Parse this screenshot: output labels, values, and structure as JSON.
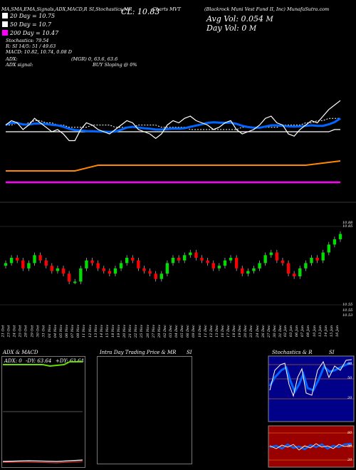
{
  "header": {
    "title_left": "MA,SMA,EMA,Signals,ADX,MACD,R",
    "title_mid": "SI,Stochastics,MR",
    "cl_label": "CL: 10.83",
    "ticker": "Charts MVT",
    "company": "(Blackrock Muni Vest Fund II, Inc) MunafaSutra.com",
    "avg_vol": "Avg Vol: 0.054",
    "avg_vol_unit": "M",
    "day_vol": "Day Vol: 0",
    "day_vol_unit": "M"
  },
  "legend": [
    {
      "label": "20  Day  = 10.75",
      "color": "#ffffff"
    },
    {
      "label": "50  Day  = 10.7",
      "color": "#ffffff"
    },
    {
      "label": "200  Day  = 10.47",
      "color": "#ff00ff"
    }
  ],
  "stats": [
    "Stochastics: 79.54",
    "R:                SI 14/5: 51 / 49.63",
    "MACD: 10.82, 10.74, 0.08  D"
  ],
  "adx_line": {
    "label": "ADX:",
    "value": "(MGR) 0, 63.6, 63.6"
  },
  "adx_signal": {
    "label": "ADX  signal:",
    "value": "BUY Sloping @ 0%"
  },
  "price_axis": {
    "top": [
      "10.88",
      "10.85"
    ],
    "bottom": [
      "10.55",
      "10.55",
      "10.53"
    ]
  },
  "dates": [
    "21 Oct",
    "23 Oct",
    "24 Oct",
    "25 Oct",
    "28 Oct",
    "29 Oct",
    "30 Oct",
    "31 Oct",
    "01 Nov",
    "04 Nov",
    "05 Nov",
    "06 Nov",
    "07 Nov",
    "08 Nov",
    "11 Nov",
    "12 Nov",
    "13 Nov",
    "14 Nov",
    "15 Nov",
    "18 Nov",
    "19 Nov",
    "20 Nov",
    "21 Nov",
    "22 Nov",
    "25 Nov",
    "26 Nov",
    "27 Nov",
    "29 Nov",
    "02 Dec",
    "03 Dec",
    "04 Dec",
    "05 Dec",
    "06 Dec",
    "09 Dec",
    "10 Dec",
    "11 Dec",
    "12 Dec",
    "13 Dec",
    "16 Dec",
    "17 Dec",
    "18 Dec",
    "19 Dec",
    "20 Dec",
    "23 Dec",
    "24 Dec",
    "26 Dec",
    "27 Dec",
    "30 Dec",
    "31 Dec",
    "02 Jan",
    "03 Jan",
    "06 Jan",
    "07 Jan",
    "08 Jan",
    "10 Jan",
    "13 Jan",
    "14 Jan",
    "15 Jan",
    "16 Jan"
  ],
  "panels": {
    "adx": {
      "title": "ADX  & MACD",
      "adx_label": "ADX: 0",
      "dy_neg": "-DY: 63.64",
      "dy_pos": "+DY: 63.64"
    },
    "intraday": {
      "title": "Intra  Day Trading Price  & MR",
      "si": "SI"
    },
    "stoch": {
      "title": "Stochastics & R",
      "si": "SI",
      "ticks": [
        "80",
        "50",
        "20"
      ],
      "r_ticks": [
        "80",
        "50",
        "20"
      ]
    }
  },
  "colors": {
    "up": "#00dd00",
    "down": "#ff0000",
    "ema": "#0066ff",
    "ma200": "#ff00ff",
    "orange": "#ff8800",
    "stoch_bg": "#000088",
    "rsi_bg": "#990000"
  },
  "chart_data": {
    "type": "line",
    "x": [
      "21 Oct",
      "23 Oct",
      "24 Oct",
      "25 Oct",
      "28 Oct",
      "29 Oct",
      "30 Oct",
      "31 Oct",
      "01 Nov",
      "04 Nov",
      "05 Nov",
      "06 Nov",
      "07 Nov",
      "08 Nov",
      "11 Nov",
      "12 Nov",
      "13 Nov",
      "14 Nov",
      "15 Nov",
      "18 Nov",
      "19 Nov",
      "20 Nov",
      "21 Nov",
      "22 Nov",
      "25 Nov",
      "26 Nov",
      "27 Nov",
      "29 Nov",
      "02 Dec",
      "03 Dec",
      "04 Dec",
      "05 Dec",
      "06 Dec",
      "09 Dec",
      "10 Dec",
      "11 Dec",
      "12 Dec",
      "13 Dec",
      "16 Dec",
      "17 Dec",
      "18 Dec",
      "19 Dec",
      "20 Dec",
      "23 Dec",
      "24 Dec",
      "26 Dec",
      "27 Dec",
      "30 Dec",
      "31 Dec",
      "02 Jan",
      "03 Jan",
      "06 Jan",
      "07 Jan",
      "08 Jan",
      "10 Jan",
      "13 Jan",
      "14 Jan",
      "15 Jan",
      "16 Jan"
    ],
    "series": [
      {
        "name": "20 Day",
        "values": [
          10.72,
          10.72,
          10.73,
          10.72,
          10.73,
          10.74,
          10.74,
          10.73,
          10.73,
          10.72,
          10.72,
          10.71,
          10.71,
          10.71,
          10.71,
          10.72,
          10.72,
          10.72,
          10.72,
          10.71,
          10.71,
          10.71,
          10.71,
          10.72,
          10.72,
          10.72,
          10.72,
          10.71,
          10.71,
          10.71,
          10.71,
          10.71,
          10.7,
          10.7,
          10.7,
          10.7,
          10.7,
          10.7,
          10.7,
          10.7,
          10.7,
          10.71,
          10.71,
          10.71,
          10.71,
          10.71,
          10.71,
          10.71,
          10.72,
          10.72,
          10.72,
          10.72,
          10.73,
          10.73,
          10.74,
          10.74,
          10.75,
          10.75,
          10.75
        ]
      },
      {
        "name": "50 Day",
        "values": [
          10.69,
          10.69,
          10.69,
          10.69,
          10.69,
          10.69,
          10.69,
          10.69,
          10.69,
          10.69,
          10.69,
          10.69,
          10.69,
          10.69,
          10.69,
          10.69,
          10.69,
          10.69,
          10.69,
          10.69,
          10.69,
          10.69,
          10.69,
          10.69,
          10.69,
          10.69,
          10.69,
          10.69,
          10.69,
          10.69,
          10.69,
          10.69,
          10.69,
          10.69,
          10.69,
          10.69,
          10.69,
          10.69,
          10.69,
          10.69,
          10.69,
          10.69,
          10.69,
          10.69,
          10.69,
          10.69,
          10.69,
          10.69,
          10.69,
          10.69,
          10.69,
          10.69,
          10.69,
          10.69,
          10.69,
          10.69,
          10.69,
          10.7,
          10.7
        ]
      },
      {
        "name": "200 Day",
        "values": [
          10.47,
          10.47,
          10.47,
          10.47,
          10.47,
          10.47,
          10.47,
          10.47,
          10.47,
          10.47,
          10.47,
          10.47,
          10.47,
          10.47,
          10.47,
          10.47,
          10.47,
          10.47,
          10.47,
          10.47,
          10.47,
          10.47,
          10.47,
          10.47,
          10.47,
          10.47,
          10.47,
          10.47,
          10.47,
          10.47,
          10.47,
          10.47,
          10.47,
          10.47,
          10.47,
          10.47,
          10.47,
          10.47,
          10.47,
          10.47,
          10.47,
          10.47,
          10.47,
          10.47,
          10.47,
          10.47,
          10.47,
          10.47,
          10.47,
          10.47,
          10.47,
          10.47,
          10.47,
          10.47,
          10.47,
          10.47,
          10.47,
          10.47,
          10.47
        ]
      },
      {
        "name": "Close",
        "values": [
          10.72,
          10.74,
          10.73,
          10.7,
          10.72,
          10.75,
          10.73,
          10.71,
          10.69,
          10.7,
          10.68,
          10.65,
          10.65,
          10.7,
          10.73,
          10.72,
          10.7,
          10.69,
          10.68,
          10.7,
          10.72,
          10.74,
          10.73,
          10.7,
          10.69,
          10.68,
          10.66,
          10.68,
          10.72,
          10.74,
          10.73,
          10.75,
          10.76,
          10.74,
          10.73,
          10.72,
          10.7,
          10.71,
          10.73,
          10.74,
          10.7,
          10.68,
          10.69,
          10.7,
          10.72,
          10.75,
          10.76,
          10.73,
          10.72,
          10.68,
          10.67,
          10.7,
          10.72,
          10.74,
          10.73,
          10.76,
          10.79,
          10.81,
          10.83
        ]
      }
    ],
    "ylim": [
      10.53,
      10.88
    ]
  }
}
